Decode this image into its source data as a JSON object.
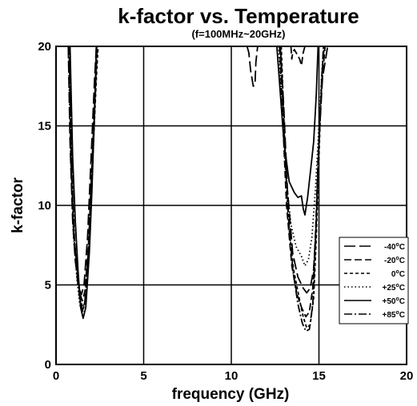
{
  "chart_data": {
    "type": "line",
    "title": "k-factor vs. Temperature",
    "subtitle": "(f=100MHz~20GHz)",
    "xlabel": "frequency (GHz)",
    "ylabel": "k-factor",
    "xlim": [
      0,
      20
    ],
    "ylim": [
      0,
      20
    ],
    "xticks": [
      0,
      5,
      10,
      15,
      20
    ],
    "yticks": [
      0,
      5,
      10,
      15,
      20
    ],
    "grid": true,
    "legend_position": "right",
    "series": [
      {
        "name": "-40°C",
        "name_main": "-40",
        "name_sup": "o",
        "name_unit": "C",
        "dash": "long-dash",
        "segments": [
          [
            [
              0.7,
              20
            ],
            [
              0.8,
              14
            ],
            [
              0.95,
              9
            ],
            [
              1.1,
              6.5
            ],
            [
              1.3,
              4.8
            ],
            [
              1.45,
              4.4
            ],
            [
              1.6,
              5
            ],
            [
              1.8,
              8
            ],
            [
              2.0,
              13
            ],
            [
              2.2,
              18
            ],
            [
              2.3,
              20
            ]
          ],
          [
            [
              10.9,
              20
            ],
            [
              11.0,
              19.6
            ],
            [
              11.1,
              18.5
            ],
            [
              11.25,
              17.5
            ],
            [
              11.35,
              17.6
            ],
            [
              11.4,
              19
            ],
            [
              11.5,
              20
            ]
          ],
          [
            [
              12.8,
              20
            ],
            [
              13.0,
              16
            ],
            [
              13.2,
              11
            ],
            [
              13.5,
              7
            ],
            [
              13.8,
              5.5
            ],
            [
              14.1,
              4.8
            ],
            [
              14.3,
              4.5
            ],
            [
              14.5,
              4.8
            ],
            [
              14.7,
              6
            ],
            [
              14.85,
              9
            ],
            [
              15.0,
              14
            ],
            [
              15.2,
              18
            ],
            [
              15.5,
              20
            ]
          ]
        ]
      },
      {
        "name": "-20°C",
        "name_main": "-20",
        "name_sup": "o",
        "name_unit": "C",
        "dash": "dash",
        "segments": [
          [
            [
              0.75,
              20
            ],
            [
              0.85,
              13
            ],
            [
              1.0,
              8.5
            ],
            [
              1.2,
              6
            ],
            [
              1.35,
              4.5
            ],
            [
              1.5,
              4.0
            ],
            [
              1.65,
              4.6
            ],
            [
              1.85,
              7.5
            ],
            [
              2.05,
              12.5
            ],
            [
              2.25,
              17.5
            ],
            [
              2.35,
              20
            ]
          ],
          [
            [
              12.75,
              20
            ],
            [
              12.95,
              15
            ],
            [
              13.15,
              10
            ],
            [
              13.45,
              6.2
            ],
            [
              13.75,
              4.4
            ],
            [
              14.0,
              3.6
            ],
            [
              14.25,
              3.0
            ],
            [
              14.45,
              3.3
            ],
            [
              14.65,
              4.8
            ],
            [
              14.8,
              8
            ],
            [
              14.95,
              13
            ],
            [
              15.15,
              17.5
            ],
            [
              15.35,
              20
            ]
          ],
          [
            [
              13.4,
              20
            ],
            [
              13.45,
              19.2
            ],
            [
              13.5,
              19.6
            ],
            [
              13.6,
              19.8
            ],
            [
              13.9,
              19.2
            ],
            [
              14.0,
              18.8
            ],
            [
              14.1,
              19.6
            ],
            [
              14.2,
              20
            ]
          ]
        ]
      },
      {
        "name": "0°C",
        "name_main": "0",
        "name_sup": "o",
        "name_unit": "C",
        "dash": "short-dash",
        "segments": [
          [
            [
              0.75,
              20
            ],
            [
              0.9,
              12
            ],
            [
              1.05,
              7.5
            ],
            [
              1.25,
              5.5
            ],
            [
              1.4,
              4.0
            ],
            [
              1.55,
              3.5
            ],
            [
              1.7,
              4.2
            ],
            [
              1.9,
              7.5
            ],
            [
              2.1,
              13
            ],
            [
              2.3,
              18
            ],
            [
              2.4,
              20
            ]
          ],
          [
            [
              12.85,
              20
            ],
            [
              13.05,
              14
            ],
            [
              13.3,
              8.5
            ],
            [
              13.55,
              6
            ],
            [
              13.85,
              4.3
            ],
            [
              14.1,
              3.0
            ],
            [
              14.3,
              2.3
            ],
            [
              14.5,
              2.5
            ],
            [
              14.7,
              4.2
            ],
            [
              14.85,
              8
            ],
            [
              15.0,
              13
            ],
            [
              15.15,
              18
            ],
            [
              15.3,
              20
            ]
          ]
        ]
      },
      {
        "name": "+25°C",
        "name_main": "+25",
        "name_sup": "o",
        "name_unit": "C",
        "dash": "dot",
        "segments": [
          [
            [
              0.7,
              20
            ],
            [
              0.85,
              12.5
            ],
            [
              1.0,
              8
            ],
            [
              1.2,
              5.3
            ],
            [
              1.35,
              3.8
            ],
            [
              1.5,
              3.2
            ],
            [
              1.65,
              3.9
            ],
            [
              1.85,
              7
            ],
            [
              2.05,
              12
            ],
            [
              2.25,
              17
            ],
            [
              2.35,
              20
            ]
          ],
          [
            [
              12.7,
              20
            ],
            [
              12.9,
              16
            ],
            [
              13.1,
              12
            ],
            [
              13.4,
              8.8
            ],
            [
              13.7,
              7.4
            ],
            [
              14.0,
              6.8
            ],
            [
              14.2,
              6.2
            ],
            [
              14.4,
              6.6
            ],
            [
              14.6,
              8
            ],
            [
              14.8,
              11
            ],
            [
              15.0,
              15
            ],
            [
              15.2,
              19
            ],
            [
              15.3,
              20
            ]
          ]
        ]
      },
      {
        "name": "+50°C",
        "name_main": "+50",
        "name_sup": "o",
        "name_unit": "C",
        "dash": "solid",
        "segments": [
          [
            [
              0.8,
              20
            ],
            [
              0.95,
              13
            ],
            [
              1.1,
              9
            ],
            [
              1.25,
              6
            ],
            [
              1.4,
              3.6
            ],
            [
              1.55,
              2.9
            ],
            [
              1.7,
              3.6
            ],
            [
              1.9,
              7
            ],
            [
              2.05,
              11
            ],
            [
              2.2,
              16
            ],
            [
              2.3,
              20
            ]
          ],
          [
            [
              12.6,
              20
            ],
            [
              12.8,
              17
            ],
            [
              13.0,
              14
            ],
            [
              13.3,
              11.5
            ],
            [
              13.6,
              10.8
            ],
            [
              13.8,
              10.5
            ],
            [
              14.0,
              10.6
            ],
            [
              14.1,
              9.8
            ],
            [
              14.2,
              9.4
            ],
            [
              14.35,
              10.5
            ],
            [
              14.5,
              12
            ],
            [
              14.7,
              14
            ],
            [
              14.85,
              17
            ],
            [
              14.95,
              20
            ]
          ]
        ]
      },
      {
        "name": "+85°C",
        "name_main": "+85",
        "name_sup": "o",
        "name_unit": "C",
        "dash": "dash-dot",
        "segments": [
          [
            [
              0.75,
              20
            ],
            [
              0.9,
              12
            ],
            [
              1.05,
              8
            ],
            [
              1.2,
              5.5
            ],
            [
              1.35,
              4.2
            ],
            [
              1.5,
              3.4
            ],
            [
              1.65,
              4.0
            ],
            [
              1.85,
              7.2
            ],
            [
              2.05,
              12.5
            ],
            [
              2.25,
              18
            ],
            [
              2.35,
              20
            ]
          ],
          [
            [
              12.8,
              20
            ],
            [
              13.0,
              15
            ],
            [
              13.2,
              10
            ],
            [
              13.5,
              6
            ],
            [
              13.8,
              3.8
            ],
            [
              14.05,
              2.6
            ],
            [
              14.25,
              2.1
            ],
            [
              14.45,
              2.2
            ],
            [
              14.65,
              3.8
            ],
            [
              14.8,
              7.5
            ],
            [
              14.95,
              12.5
            ],
            [
              15.15,
              17.5
            ],
            [
              15.25,
              20
            ]
          ]
        ]
      }
    ]
  }
}
